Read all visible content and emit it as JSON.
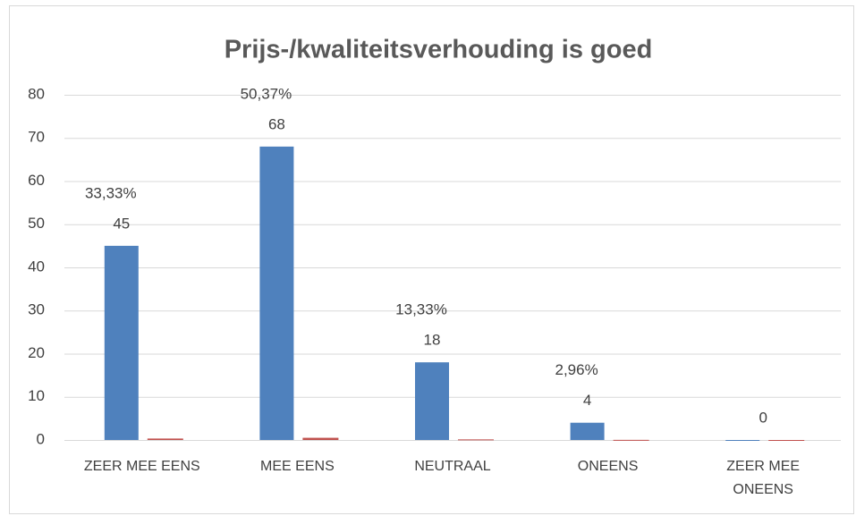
{
  "chart_data": {
    "type": "bar",
    "title": "Prijs-/kwaliteitsverhouding is goed",
    "categories": [
      "ZEER MEE EENS",
      "MEE EENS",
      "NEUTRAAL",
      "ONEENS",
      "ZEER MEE ONEENS"
    ],
    "series": [
      {
        "color": "#4f81bd",
        "values": [
          45,
          68,
          18,
          4,
          0
        ]
      },
      {
        "color": "#c0504d",
        "values": [
          0.3333,
          0.5037,
          0.1333,
          0.0296,
          0
        ],
        "value_labels": [
          "33,33%",
          "50,37%",
          "13,33%",
          "2,96%",
          null
        ]
      }
    ],
    "ylim": [
      0,
      80
    ],
    "yticks": [
      0,
      10,
      20,
      30,
      40,
      50,
      60,
      70,
      80
    ],
    "grid": true
  }
}
